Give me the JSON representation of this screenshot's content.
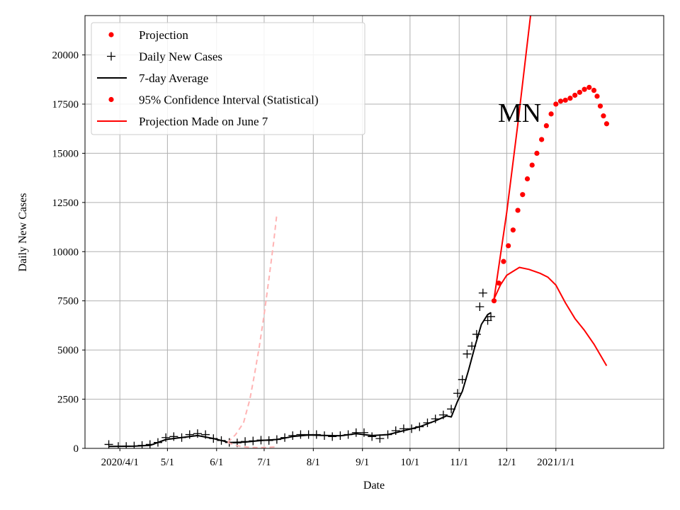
{
  "chart_data": {
    "type": "line",
    "title": "",
    "xlabel": "Date",
    "ylabel": "Daily New Cases",
    "annotation": "MN",
    "xlim": [
      "2020-03-10",
      "2021-03-10"
    ],
    "ylim": [
      0,
      22000
    ],
    "grid": true,
    "legend_position": "top-left",
    "x_ticks": [
      {
        "date": "2020-04-01",
        "label": "2020/4/1"
      },
      {
        "date": "2020-05-01",
        "label": "5/1"
      },
      {
        "date": "2020-06-01",
        "label": "6/1"
      },
      {
        "date": "2020-07-01",
        "label": "7/1"
      },
      {
        "date": "2020-08-01",
        "label": "8/1"
      },
      {
        "date": "2020-09-01",
        "label": "9/1"
      },
      {
        "date": "2020-10-01",
        "label": "10/1"
      },
      {
        "date": "2020-11-01",
        "label": "11/1"
      },
      {
        "date": "2020-12-01",
        "label": "12/1"
      },
      {
        "date": "2021-01-01",
        "label": "2021/1/1"
      }
    ],
    "y_ticks": [
      0,
      2500,
      5000,
      7500,
      10000,
      12500,
      15000,
      17500,
      20000
    ],
    "legend": [
      {
        "label": "Projection",
        "marker": "dot",
        "color": "#ff0000"
      },
      {
        "label": "Daily New Cases",
        "marker": "plus",
        "color": "#000000"
      },
      {
        "label": "7-day Average",
        "marker": "line",
        "color": "#000000"
      },
      {
        "label": "95% Confidence Interval (Statistical)",
        "marker": "dot",
        "color": "#ff0000"
      },
      {
        "label": "Projection Made on June 7",
        "marker": "line",
        "color": "#ff0000"
      }
    ],
    "series": [
      {
        "name": "Daily New Cases",
        "style": "plus",
        "color": "#000000",
        "points": [
          [
            "2020-03-25",
            200
          ],
          [
            "2020-03-31",
            100
          ],
          [
            "2020-04-05",
            100
          ],
          [
            "2020-04-10",
            120
          ],
          [
            "2020-04-15",
            150
          ],
          [
            "2020-04-20",
            200
          ],
          [
            "2020-04-25",
            300
          ],
          [
            "2020-04-30",
            550
          ],
          [
            "2020-05-05",
            600
          ],
          [
            "2020-05-10",
            550
          ],
          [
            "2020-05-15",
            700
          ],
          [
            "2020-05-20",
            750
          ],
          [
            "2020-05-25",
            700
          ],
          [
            "2020-05-30",
            500
          ],
          [
            "2020-06-04",
            400
          ],
          [
            "2020-06-09",
            300
          ],
          [
            "2020-06-14",
            280
          ],
          [
            "2020-06-19",
            350
          ],
          [
            "2020-06-24",
            380
          ],
          [
            "2020-06-29",
            420
          ],
          [
            "2020-07-04",
            400
          ],
          [
            "2020-07-09",
            450
          ],
          [
            "2020-07-14",
            550
          ],
          [
            "2020-07-19",
            650
          ],
          [
            "2020-07-24",
            700
          ],
          [
            "2020-07-29",
            700
          ],
          [
            "2020-08-03",
            700
          ],
          [
            "2020-08-08",
            650
          ],
          [
            "2020-08-13",
            600
          ],
          [
            "2020-08-18",
            650
          ],
          [
            "2020-08-23",
            700
          ],
          [
            "2020-08-28",
            800
          ],
          [
            "2020-09-02",
            800
          ],
          [
            "2020-09-07",
            600
          ],
          [
            "2020-09-12",
            500
          ],
          [
            "2020-09-17",
            700
          ],
          [
            "2020-09-22",
            900
          ],
          [
            "2020-09-27",
            1000
          ],
          [
            "2020-10-02",
            1000
          ],
          [
            "2020-10-07",
            1100
          ],
          [
            "2020-10-12",
            1300
          ],
          [
            "2020-10-17",
            1500
          ],
          [
            "2020-10-22",
            1700
          ],
          [
            "2020-10-27",
            2000
          ],
          [
            "2020-10-31",
            2800
          ],
          [
            "2020-11-03",
            3500
          ],
          [
            "2020-11-06",
            4800
          ],
          [
            "2020-11-09",
            5200
          ],
          [
            "2020-11-12",
            5800
          ],
          [
            "2020-11-14",
            7200
          ],
          [
            "2020-11-16",
            7900
          ],
          [
            "2020-11-19",
            6500
          ],
          [
            "2020-11-21",
            6700
          ]
        ]
      },
      {
        "name": "7-day Average",
        "style": "line",
        "color": "#000000",
        "points": [
          [
            "2020-03-25",
            100
          ],
          [
            "2020-04-10",
            110
          ],
          [
            "2020-04-20",
            150
          ],
          [
            "2020-04-30",
            450
          ],
          [
            "2020-05-10",
            550
          ],
          [
            "2020-05-20",
            650
          ],
          [
            "2020-05-30",
            500
          ],
          [
            "2020-06-09",
            300
          ],
          [
            "2020-06-19",
            320
          ],
          [
            "2020-06-29",
            400
          ],
          [
            "2020-07-09",
            450
          ],
          [
            "2020-07-19",
            600
          ],
          [
            "2020-07-29",
            680
          ],
          [
            "2020-08-08",
            660
          ],
          [
            "2020-08-18",
            640
          ],
          [
            "2020-08-28",
            750
          ],
          [
            "2020-09-07",
            650
          ],
          [
            "2020-09-17",
            700
          ],
          [
            "2020-09-27",
            900
          ],
          [
            "2020-10-07",
            1100
          ],
          [
            "2020-10-17",
            1400
          ],
          [
            "2020-10-24",
            1650
          ],
          [
            "2020-10-27",
            1600
          ],
          [
            "2020-10-31",
            2400
          ],
          [
            "2020-11-03",
            2900
          ],
          [
            "2020-11-07",
            4000
          ],
          [
            "2020-11-11",
            5200
          ],
          [
            "2020-11-15",
            6300
          ],
          [
            "2020-11-19",
            6800
          ],
          [
            "2020-11-21",
            6900
          ]
        ]
      },
      {
        "name": "Projection",
        "style": "dot",
        "color": "#ff0000",
        "points": [
          [
            "2020-11-23",
            7500
          ],
          [
            "2020-11-26",
            8400
          ],
          [
            "2020-11-29",
            9500
          ],
          [
            "2020-12-02",
            10300
          ],
          [
            "2020-12-05",
            11100
          ],
          [
            "2020-12-08",
            12100
          ],
          [
            "2020-12-11",
            12900
          ],
          [
            "2020-12-14",
            13700
          ],
          [
            "2020-12-17",
            14400
          ],
          [
            "2020-12-20",
            15000
          ],
          [
            "2020-12-23",
            15700
          ],
          [
            "2020-12-26",
            16400
          ],
          [
            "2020-12-29",
            17000
          ],
          [
            "2021-01-01",
            17500
          ],
          [
            "2021-01-04",
            17650
          ],
          [
            "2021-01-07",
            17700
          ],
          [
            "2021-01-10",
            17800
          ],
          [
            "2021-01-13",
            17950
          ],
          [
            "2021-01-16",
            18100
          ],
          [
            "2021-01-19",
            18250
          ],
          [
            "2021-01-22",
            18350
          ],
          [
            "2021-01-25",
            18200
          ],
          [
            "2021-01-27",
            17900
          ],
          [
            "2021-01-29",
            17400
          ],
          [
            "2021-01-31",
            16900
          ],
          [
            "2021-02-02",
            16500
          ]
        ]
      },
      {
        "name": "95% Confidence Interval (Statistical) upper",
        "style": "line",
        "color": "#ff0000",
        "points": [
          [
            "2020-11-23",
            7600
          ],
          [
            "2020-12-01",
            12000
          ],
          [
            "2020-12-08",
            16500
          ],
          [
            "2020-12-16",
            22000
          ]
        ]
      },
      {
        "name": "95% Confidence Interval (Statistical) lower",
        "style": "line",
        "color": "#ff0000",
        "points": [
          [
            "2020-11-23",
            7600
          ],
          [
            "2020-11-27",
            8300
          ],
          [
            "2020-12-01",
            8800
          ],
          [
            "2020-12-05",
            9000
          ],
          [
            "2020-12-09",
            9200
          ],
          [
            "2020-12-15",
            9100
          ],
          [
            "2020-12-22",
            8900
          ],
          [
            "2020-12-27",
            8700
          ],
          [
            "2021-01-01",
            8300
          ],
          [
            "2021-01-07",
            7400
          ],
          [
            "2021-01-13",
            6600
          ],
          [
            "2021-01-19",
            6000
          ],
          [
            "2021-01-25",
            5300
          ],
          [
            "2021-02-02",
            4200
          ]
        ]
      },
      {
        "name": "Projection Made on June 7 upper",
        "style": "dashed",
        "color": "#ffb3b3",
        "points": [
          [
            "2020-06-08",
            300
          ],
          [
            "2020-06-13",
            700
          ],
          [
            "2020-06-18",
            1300
          ],
          [
            "2020-06-22",
            2500
          ],
          [
            "2020-06-25",
            3800
          ],
          [
            "2020-06-28",
            5200
          ],
          [
            "2020-07-01",
            6800
          ],
          [
            "2020-07-04",
            8600
          ],
          [
            "2020-07-07",
            10500
          ],
          [
            "2020-07-09",
            11900
          ]
        ]
      },
      {
        "name": "Projection Made on June 7 lower",
        "style": "dashed",
        "color": "#ffb3b3",
        "points": [
          [
            "2020-06-08",
            300
          ],
          [
            "2020-06-13",
            150
          ],
          [
            "2020-06-18",
            80
          ],
          [
            "2020-06-23",
            50
          ],
          [
            "2020-06-28",
            40
          ],
          [
            "2020-07-03",
            50
          ],
          [
            "2020-07-09",
            80
          ]
        ]
      }
    ]
  }
}
